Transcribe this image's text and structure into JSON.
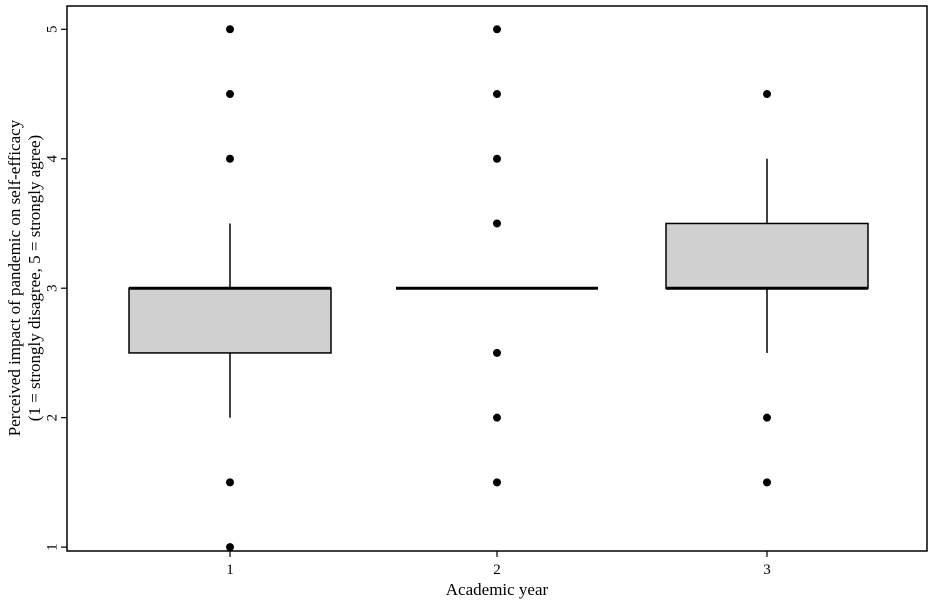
{
  "chart_data": {
    "type": "boxplot",
    "xlabel": "Academic year",
    "ylabel": "Perceived impact of pandemic on self-efficacy",
    "ylabel_line2": "(1 = strongly disagree, 5 = strongly agree)",
    "categories": [
      "1",
      "2",
      "3"
    ],
    "ylim": [
      0.97,
      5.18
    ],
    "yticks": [
      1,
      2,
      3,
      4,
      5
    ],
    "grid": false,
    "colors": {
      "box_fill": "#d0d0d0",
      "stroke": "#000000",
      "background": "#ffffff"
    },
    "boxes": [
      {
        "category": "1",
        "q1": 2.5,
        "median": 3.0,
        "q3": 3.0,
        "whisker_low": 2.0,
        "whisker_high": 3.5,
        "outliers": [
          1.0,
          1.5,
          4.0,
          4.5,
          5.0
        ]
      },
      {
        "category": "2",
        "q1": 3.0,
        "median": 3.0,
        "q3": 3.0,
        "whisker_low": 3.0,
        "whisker_high": 3.0,
        "outliers": [
          1.5,
          2.0,
          2.5,
          3.5,
          4.0,
          4.5,
          5.0
        ]
      },
      {
        "category": "3",
        "q1": 3.0,
        "median": 3.0,
        "q3": 3.5,
        "whisker_low": 2.5,
        "whisker_high": 4.0,
        "outliers": [
          1.5,
          2.0,
          4.5
        ]
      }
    ]
  }
}
